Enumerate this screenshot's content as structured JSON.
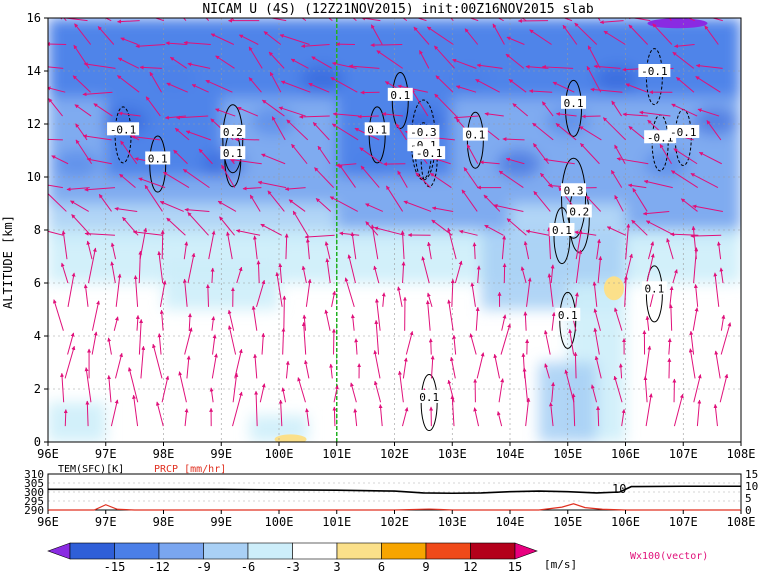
{
  "chart_data": [
    {
      "type": "heatmap",
      "title": "NICAM U (4S) (12Z21NOV2015) init:00Z16NOV2015 slab",
      "xlabel": "",
      "ylabel": "ALTITUDE [km]",
      "xlim": [
        96,
        108
      ],
      "ylim": [
        0,
        16
      ],
      "x_ticks": [
        "96E",
        "97E",
        "98E",
        "99E",
        "100E",
        "101E",
        "102E",
        "103E",
        "104E",
        "105E",
        "106E",
        "107E",
        "108E"
      ],
      "y_ticks": [
        "0",
        "2",
        "4",
        "6",
        "8",
        "10",
        "12",
        "14",
        "16"
      ],
      "x_tick_values": [
        96,
        97,
        98,
        99,
        100,
        101,
        102,
        103,
        104,
        105,
        106,
        107,
        108
      ],
      "y_tick_values": [
        0,
        2,
        4,
        6,
        8,
        10,
        12,
        14,
        16
      ],
      "marker_line_lon": 101,
      "colorbar": {
        "levels": [
          "-15",
          "-12",
          "-9",
          "-6",
          "-3",
          "3",
          "6",
          "9",
          "12",
          "15"
        ],
        "unit": "[m/s]",
        "colors": [
          "#8a2be2",
          "#2f5fd8",
          "#4b7fe8",
          "#7aa6f0",
          "#a9d0f5",
          "#cdeefa",
          "#ffffff",
          "#fbe08a",
          "#f7a500",
          "#f04a1a",
          "#b3001b",
          "#e8007f"
        ]
      },
      "vector_label": "Wx100(vector)",
      "contour_labels": [
        {
          "text": "-0.1",
          "lon": 97.3,
          "alt": 11.8
        },
        {
          "text": "0.1",
          "lon": 97.9,
          "alt": 10.7
        },
        {
          "text": "0.2",
          "lon": 99.2,
          "alt": 11.7
        },
        {
          "text": "0.1",
          "lon": 99.2,
          "alt": 10.9
        },
        {
          "text": "0.1",
          "lon": 101.7,
          "alt": 11.8
        },
        {
          "text": "0.1",
          "lon": 102.1,
          "alt": 13.1
        },
        {
          "text": "-0.3",
          "lon": 102.5,
          "alt": 11.7
        },
        {
          "text": "-0.1",
          "lon": 102.5,
          "alt": 11.2
        },
        {
          "text": "-0.1",
          "lon": 102.6,
          "alt": 10.9
        },
        {
          "text": "0.1",
          "lon": 103.4,
          "alt": 11.6
        },
        {
          "text": "0.1",
          "lon": 105.1,
          "alt": 12.8
        },
        {
          "text": "0.3",
          "lon": 105.1,
          "alt": 9.5
        },
        {
          "text": "0.2",
          "lon": 105.2,
          "alt": 8.7
        },
        {
          "text": "0.1",
          "lon": 104.9,
          "alt": 8.0
        },
        {
          "text": "-0.1",
          "lon": 106.5,
          "alt": 14.0
        },
        {
          "text": "-0.1",
          "lon": 106.6,
          "alt": 11.5
        },
        {
          "text": "-0.1",
          "lon": 107.0,
          "alt": 11.7
        },
        {
          "text": "0.1",
          "lon": 106.5,
          "alt": 5.8
        },
        {
          "text": "0.1",
          "lon": 105.0,
          "alt": 4.8
        },
        {
          "text": "0.1",
          "lon": 102.6,
          "alt": 1.7
        }
      ],
      "colors": {
        "vector": "#e0107a",
        "contour": "#000000",
        "marker_line": "#20b020"
      }
    },
    {
      "type": "line",
      "title": "",
      "xlim": [
        96,
        108
      ],
      "x_ticks": [
        "96E",
        "97E",
        "98E",
        "99E",
        "100E",
        "101E",
        "102E",
        "103E",
        "104E",
        "105E",
        "106E",
        "107E",
        "108E"
      ],
      "left_axis": {
        "label": "TEM(SFC)[K]",
        "ticks": [
          "290",
          "295",
          "300",
          "305",
          "310"
        ],
        "ylim": [
          290,
          310
        ]
      },
      "right_axis": {
        "label": "PRCP [mm/hr]",
        "ticks": [
          "0",
          "5",
          "10",
          "15"
        ],
        "ylim": [
          0,
          15
        ]
      },
      "annotation": "10",
      "series": [
        {
          "name": "TEM(SFC)[K]",
          "color": "#000000",
          "x": [
            96,
            97,
            98,
            99,
            100,
            101,
            102,
            102.5,
            103,
            103.5,
            104,
            104.5,
            105,
            105.5,
            105.9,
            106.1,
            107,
            108
          ],
          "values": [
            301.5,
            301.5,
            301.5,
            301.5,
            301.2,
            301.0,
            300.5,
            299.5,
            299.3,
            299.5,
            300.2,
            300.5,
            300.2,
            299.5,
            300.0,
            303.0,
            303.2,
            303.2
          ]
        },
        {
          "name": "PRCP [mm/hr]",
          "color": "#e03020",
          "x": [
            96,
            96.8,
            97.0,
            97.2,
            97.5,
            98,
            99,
            100,
            101,
            102,
            102.6,
            102.8,
            103,
            104,
            104.5,
            104.9,
            105.1,
            105.3,
            105.6,
            106,
            107,
            108
          ],
          "values": [
            0,
            0,
            2.2,
            0.3,
            0,
            0,
            0,
            0,
            0,
            0,
            0.4,
            0.2,
            0,
            0,
            0,
            1.2,
            2.6,
            1.0,
            0.3,
            0,
            0,
            0
          ]
        }
      ]
    }
  ]
}
